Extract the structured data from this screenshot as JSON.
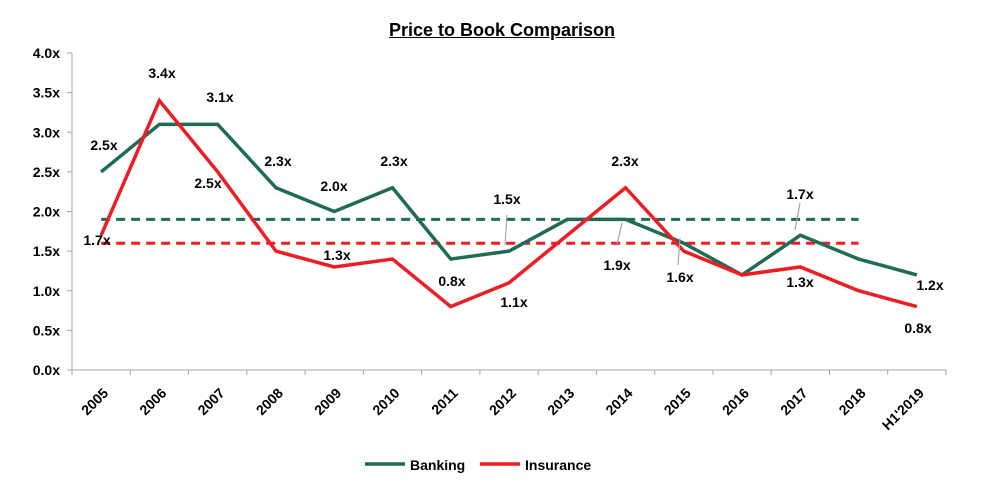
{
  "chart_data": {
    "type": "line",
    "title": "Price to Book Comparison",
    "categories": [
      "2005",
      "2006",
      "2007",
      "2008",
      "2009",
      "2010",
      "2011",
      "2012",
      "2013",
      "2014",
      "2015",
      "2016",
      "2017",
      "2018",
      "H1'2019"
    ],
    "ylim": [
      0,
      4.0
    ],
    "yticks": [
      "0.0x",
      "0.5x",
      "1.0x",
      "1.5x",
      "2.0x",
      "2.5x",
      "3.0x",
      "3.5x",
      "4.0x"
    ],
    "series": [
      {
        "name": "Banking",
        "color": "#1f6b55",
        "values": [
          2.5,
          3.1,
          3.1,
          2.3,
          2.0,
          2.3,
          1.4,
          1.5,
          1.9,
          1.9,
          1.6,
          1.2,
          1.7,
          1.4,
          1.2
        ],
        "average": 1.9
      },
      {
        "name": "Insurance",
        "color": "#ee1c25",
        "values": [
          1.7,
          3.4,
          2.5,
          1.5,
          1.3,
          1.4,
          0.8,
          1.1,
          1.7,
          2.3,
          1.5,
          1.2,
          1.3,
          1.0,
          0.8
        ],
        "average": 1.6
      }
    ],
    "labels": [
      {
        "text": "2.5x"
      },
      {
        "text": "3.4x"
      },
      {
        "text": "3.1x"
      },
      {
        "text": "2.5x"
      },
      {
        "text": "2.3x"
      },
      {
        "text": "2.0x"
      },
      {
        "text": "1.3x"
      },
      {
        "text": "2.3x"
      },
      {
        "text": "0.8x"
      },
      {
        "text": "1.5x"
      },
      {
        "text": "1.1x"
      },
      {
        "text": "2.3x"
      },
      {
        "text": "1.9x"
      },
      {
        "text": "1.6x"
      },
      {
        "text": "1.7x"
      },
      {
        "text": "1.3x"
      },
      {
        "text": "1.2x"
      },
      {
        "text": "0.8x"
      },
      {
        "text": "1.7x"
      }
    ],
    "legend": {
      "position": "bottom",
      "entries": [
        "Banking",
        "Insurance"
      ]
    },
    "grid": false
  }
}
